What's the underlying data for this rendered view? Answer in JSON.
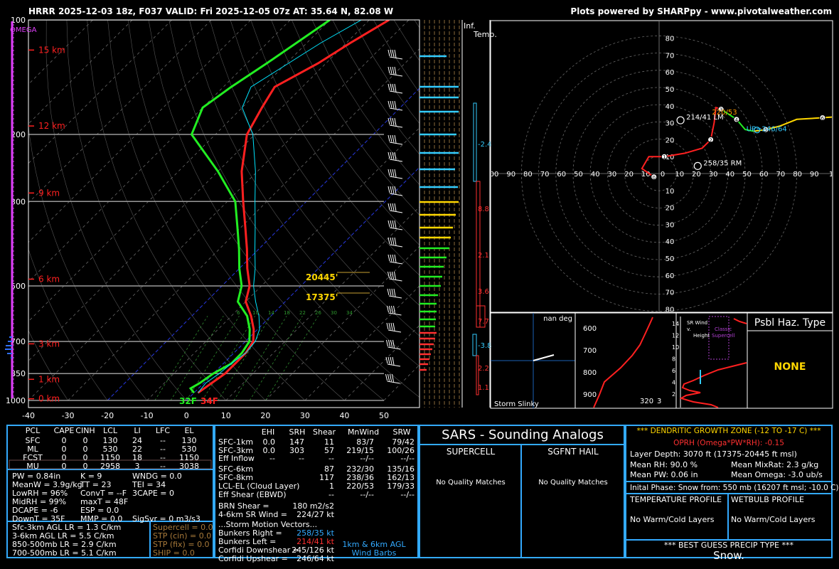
{
  "header": {
    "title": "HRRR 2025-12-03 18z, F037  VALID: Fri 2025-12-05 07z  AT: 35.64 N, 82.08 W",
    "credit": "Plots powered by SHARPpy - www.pivotalweather.com"
  },
  "chart_data": [
    {
      "type": "line",
      "name": "skew-t",
      "xlim": [
        -40,
        50
      ],
      "ylim": [
        1000,
        100
      ],
      "temp_ticks": [
        "-40",
        "-30",
        "-20",
        "-10",
        "0",
        "10",
        "20",
        "30",
        "40",
        "50"
      ],
      "pressure_ticks": [
        "100",
        "200",
        "300",
        "500",
        "700",
        "850",
        "1000"
      ],
      "height_labels": [
        "15 km",
        "12 km",
        "9 km",
        "6 km",
        "3 km",
        "1 km",
        "0 km"
      ],
      "omega_label": "OMEGA",
      "sfc_labels": {
        "dewpoint": "32F",
        "temp": "34F"
      },
      "dgz_labels": [
        "20445'",
        "17375'"
      ],
      "mixing_ratio_labels": [
        "6",
        "10",
        "14",
        "18",
        "22",
        "26",
        "30",
        "34"
      ],
      "series": [
        {
          "name": "temperature",
          "color": "#ff2020",
          "points": [
            [
              955,
              1
            ],
            [
              900,
              2
            ],
            [
              850,
              3
            ],
            [
              800,
              3
            ],
            [
              750,
              3
            ],
            [
              700,
              2
            ],
            [
              650,
              -1
            ],
            [
              600,
              -5
            ],
            [
              550,
              -10
            ],
            [
              500,
              -13
            ],
            [
              450,
              -18
            ],
            [
              400,
              -23
            ],
            [
              350,
              -29
            ],
            [
              300,
              -36
            ],
            [
              250,
              -44
            ],
            [
              200,
              -52
            ],
            [
              170,
              -55
            ],
            [
              150,
              -57
            ],
            [
              130,
              -52
            ],
            [
              115,
              -49
            ],
            [
              100,
              -45
            ]
          ]
        },
        {
          "name": "dewpoint",
          "color": "#22ee22",
          "points": [
            [
              955,
              0
            ],
            [
              930,
              -2
            ],
            [
              900,
              -1
            ],
            [
              850,
              0
            ],
            [
              800,
              2
            ],
            [
              750,
              2
            ],
            [
              700,
              1
            ],
            [
              650,
              -2
            ],
            [
              600,
              -6
            ],
            [
              550,
              -12
            ],
            [
              500,
              -15
            ],
            [
              450,
              -20
            ],
            [
              400,
              -25
            ],
            [
              350,
              -31
            ],
            [
              300,
              -38
            ],
            [
              250,
              -50
            ],
            [
              200,
              -66
            ],
            [
              170,
              -70
            ],
            [
              150,
              -68
            ],
            [
              130,
              -65
            ],
            [
              100,
              -60
            ]
          ]
        }
      ]
    },
    {
      "type": "scatter",
      "name": "hodograph",
      "xlim": [
        -100,
        100
      ],
      "ylim": [
        -85,
        85
      ],
      "rings": [
        10,
        20,
        30,
        40,
        50,
        60,
        70,
        80
      ],
      "labels_x": [
        "00",
        "90",
        "80",
        "70",
        "60",
        "50",
        "40",
        "30",
        "20",
        "10",
        "0",
        "10",
        "20",
        "30",
        "40",
        "50",
        "60",
        "70",
        "80",
        "90",
        "1"
      ],
      "labels_y_top": [
        "80",
        "70",
        "60",
        "50",
        "40",
        "30",
        "20",
        "10"
      ],
      "labels_y_bottom": [
        "10",
        "20",
        "30",
        "40",
        "50",
        "60",
        "70",
        "80"
      ],
      "trace": [
        [
          -3,
          -2
        ],
        [
          -10,
          3
        ],
        [
          -6,
          10
        ],
        [
          3,
          10
        ],
        [
          15,
          12
        ],
        [
          25,
          15
        ],
        [
          30,
          20
        ],
        [
          32,
          30
        ],
        [
          33,
          39
        ],
        [
          36,
          38
        ],
        [
          42,
          34
        ],
        [
          45,
          32
        ],
        [
          50,
          26
        ],
        [
          55,
          25
        ],
        [
          62,
          26
        ],
        [
          70,
          28
        ],
        [
          80,
          32
        ],
        [
          95,
          33
        ],
        [
          110,
          34
        ]
      ],
      "points": [
        {
          "label": "214/41 LM",
          "u": 24,
          "v": 34
        },
        {
          "label": "258/35 RM",
          "u": 34,
          "v": 7
        },
        {
          "label": "220/53",
          "u": 39,
          "v": 37
        },
        {
          "label": "UP=246/64",
          "u": 59,
          "v": 27
        }
      ]
    }
  ],
  "panels": {
    "inferred_temp": {
      "title": "Inf. Temp.",
      "labels": [
        "-2.4",
        "8.8",
        "2.1",
        "3.6",
        "7.7",
        "-3.8",
        "2.2",
        "1.1"
      ]
    },
    "storm_slinky": {
      "title": "Storm Slinky",
      "nan": "nan deg",
      "levels": [
        "600",
        "700",
        "800",
        "900"
      ],
      "level_320": "320",
      "level_3": "3"
    },
    "sr_wind": {
      "title": "SR Wind v. Height",
      "label": "Classic Supercell",
      "ticks": [
        "14",
        "12",
        "10",
        "8",
        "6",
        "4",
        "2"
      ]
    },
    "psbl_haz": {
      "title": "Psbl Haz. Type",
      "value": "NONE"
    }
  },
  "parcels": {
    "headers": [
      "PCL",
      "CAPE",
      "CINH",
      "LCL",
      "LI",
      "LFC",
      "EL"
    ],
    "rows": [
      [
        "SFC",
        "0",
        "0",
        "130",
        "24",
        "--",
        "130"
      ],
      [
        "ML",
        "0",
        "0",
        "530",
        "22",
        "--",
        "530"
      ],
      [
        "FCST",
        "0",
        "0",
        "1150",
        "18",
        "--",
        "1150"
      ],
      [
        "MU",
        "0",
        "0",
        "2958",
        "3",
        "--",
        "3038"
      ]
    ]
  },
  "indices": {
    "col1": [
      "PW = 0.84in",
      "MeanW = 3.9g/kg",
      "LowRH = 96%",
      "MidRH = 99%",
      "DCAPE = -6",
      "DownT = 35F"
    ],
    "col2": [
      "K = 9",
      "TT = 23",
      "ConvT = --F",
      "maxT = 48F",
      "ESP = 0.0",
      "MMP = 0.0"
    ],
    "col3": [
      "WNDG = 0.0",
      "TEI = 34",
      "3CAPE = 0",
      "",
      "",
      "SigSvr = 0 m3/s3"
    ]
  },
  "lapse": [
    "Sfc-3km AGL LR = 1.3 C/km",
    "3-6km AGL LR = 5.5 C/km",
    "850-500mb LR = 2.9 C/km",
    "700-500mb LR = 5.1 C/km"
  ],
  "composites": [
    "Supercell = 0.0",
    "STP (cin) = 0.0",
    "STP (fix) = 0.0",
    "SHIP = 0.0"
  ],
  "kinematics": {
    "headers": [
      "EHI",
      "SRH",
      "Shear",
      "MnWind",
      "SRW"
    ],
    "rows": [
      [
        "SFC-1km",
        "0.0",
        "147",
        "11",
        "83/7",
        "79/42"
      ],
      [
        "SFC-3km",
        "0.0",
        "303",
        "57",
        "219/15",
        "100/26"
      ],
      [
        "Eff Inflow",
        "--",
        "--",
        "--",
        "--/--",
        "--/--"
      ],
      [
        "SFC-6km",
        "",
        "",
        "87",
        "232/30",
        "135/16"
      ],
      [
        "SFC-8km",
        "",
        "",
        "117",
        "238/36",
        "162/13"
      ],
      [
        "LCL-EL (Cloud Layer)",
        "",
        "",
        "1",
        "220/53",
        "179/33"
      ],
      [
        "Eff Shear (EBWD)",
        "",
        "",
        "--",
        "--/--",
        "--/--"
      ]
    ],
    "brn": [
      "BRN Shear =",
      "180 m2/s2"
    ],
    "sr46": [
      "4-6km SR Wind =",
      "224/27 kt"
    ],
    "smv": "...Storm Motion Vectors...",
    "bunkers_right": [
      "Bunkers Right =",
      "258/35 kt"
    ],
    "bunkers_left": [
      "Bunkers Left =",
      "214/41 kt"
    ],
    "corfidi_down": [
      "Corfidi Downshear =",
      "245/126 kt"
    ],
    "corfidi_up": [
      "Corfidi Upshear =",
      "246/64 kt"
    ],
    "barb_legend": [
      "1km & 6km AGL",
      "Wind Barbs"
    ]
  },
  "sars": {
    "title": "SARS - Sounding Analogs",
    "supercell": "SUPERCELL",
    "hail": "SGFNT HAIL",
    "no_match_supercell": "No Quality Matches",
    "no_match_hail": "No Quality Matches"
  },
  "dgz": {
    "title": "*** DENDRITIC GROWTH ZONE (-12 TO -17 C) ***",
    "oprh": "OPRH (Omega*PW*RH): -0.15",
    "layer": "Layer Depth: 3070 ft (17375-20445 ft msl)",
    "mean_rh": "Mean RH: 90.0 %",
    "mean_mixrat": "Mean MixRat: 2.3 g/kg",
    "mean_pw": "Mean PW: 0.06 in",
    "mean_omega": "Mean Omega: -3.0 ub/s",
    "phase": "Inital Phase: Snow from: 550 mb (16207 ft msl; -10.0 C)",
    "temp_profile": "TEMPERATURE PROFILE",
    "wetbulb_profile": "WETBULB PROFILE",
    "temp_layers": "No Warm/Cold Layers",
    "wetbulb_layers": "No Warm/Cold Layers",
    "best_guess": "*** BEST GUESS PRECIP TYPE ***",
    "precip": "Snow."
  },
  "colors": {
    "temp": "#ff2020",
    "dew": "#22ee22",
    "wetbulb": "#00e5ff",
    "yellow": "#ffd700",
    "grid": "#9a9a9a",
    "red": "#ff3030",
    "cyan": "#33ccff"
  }
}
